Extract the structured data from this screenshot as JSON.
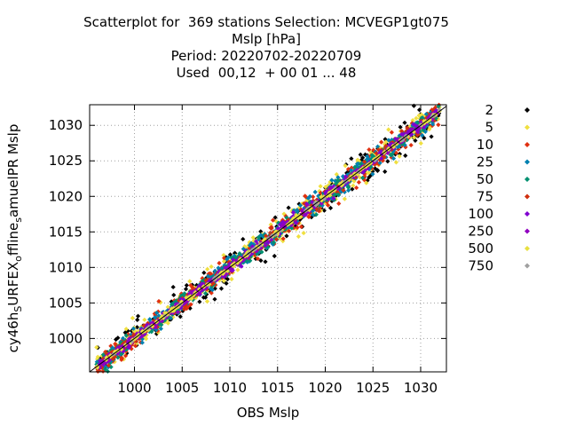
{
  "chart_data": {
    "type": "scatter",
    "title_lines": [
      "Scatterplot for  369 stations Selection: MCVEGP1gt075",
      "Mslp [hPa]",
      "Period: 20220702-20220709",
      "Used  00,12  + 00 01 ... 48"
    ],
    "xlabel": "OBS Mslp",
    "ylabel": "cy46h_SURFEX_offline_samuelPR Mslp",
    "xlim": [
      995.3,
      1032.7
    ],
    "ylim": [
      995.3,
      1032.9
    ],
    "x_ticks": [
      1000,
      1005,
      1010,
      1015,
      1020,
      1025,
      1030
    ],
    "y_ticks": [
      1000,
      1005,
      1010,
      1015,
      1020,
      1025,
      1030
    ],
    "grid": true,
    "legend_position": "right",
    "series": [
      {
        "name": "2",
        "color": "#000000",
        "spread": 1.2,
        "count": 260,
        "marker": "diamond"
      },
      {
        "name": "5",
        "color": "#f0e040",
        "spread": 1.0,
        "count": 320,
        "marker": "diamond"
      },
      {
        "name": "10",
        "color": "#e03010",
        "spread": 0.85,
        "count": 330,
        "marker": "diamond"
      },
      {
        "name": "25",
        "color": "#0080b0",
        "spread": 0.7,
        "count": 360,
        "marker": "diamond"
      },
      {
        "name": "50",
        "color": "#009070",
        "spread": 0.55,
        "count": 340,
        "marker": "diamond"
      },
      {
        "name": "75",
        "color": "#d03010",
        "spread": 0.45,
        "count": 280,
        "marker": "diamond"
      },
      {
        "name": "100",
        "color": "#8000d0",
        "spread": 0.35,
        "count": 300,
        "marker": "diamond"
      },
      {
        "name": "250",
        "color": "#9000c0",
        "spread": 0.25,
        "count": 240,
        "marker": "diamond"
      },
      {
        "name": "500",
        "color": "#e8e040",
        "spread": 0.15,
        "count": 200,
        "marker": "diamond"
      },
      {
        "name": "750",
        "color": "#a0a0a0",
        "spread": 0.08,
        "count": 40,
        "marker": "diamond"
      }
    ],
    "reference_line": {
      "from": [
        995.3,
        995.3
      ],
      "to": [
        1032.7,
        1032.7
      ],
      "color": "#000000"
    }
  }
}
